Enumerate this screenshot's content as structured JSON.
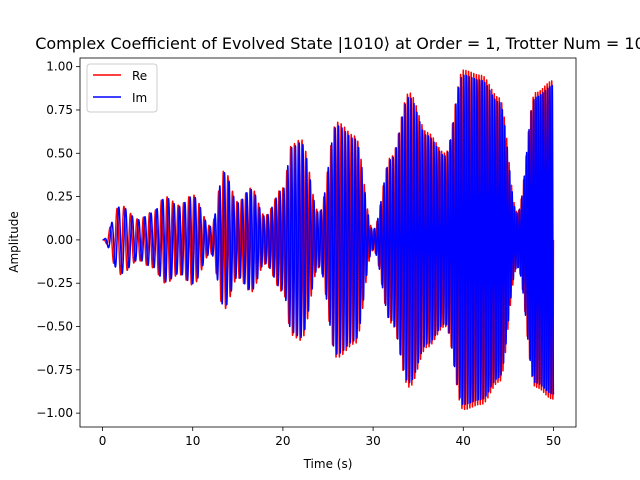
{
  "chart_data": {
    "type": "line",
    "title": "Complex Coefficient of Evolved State |1010⟩ at Order = 1, Trotter Num = 10",
    "xlabel": "Time (s)",
    "ylabel": "Amplitude",
    "xlim": [
      -2.5,
      52.5
    ],
    "ylim": [
      -1.08,
      1.05
    ],
    "xticks": [
      0,
      10,
      20,
      30,
      40,
      50
    ],
    "xtick_labels": [
      "0",
      "10",
      "20",
      "30",
      "40",
      "50"
    ],
    "yticks": [
      -1.0,
      -0.75,
      -0.5,
      -0.25,
      0.0,
      0.25,
      0.5,
      0.75,
      1.0
    ],
    "ytick_labels": [
      "−1.00",
      "−0.75",
      "−0.50",
      "−0.25",
      "0.00",
      "0.25",
      "0.50",
      "0.75",
      "1.00"
    ],
    "grid": false,
    "legend_position": "top-left",
    "envelope": {
      "t": [
        0,
        2,
        4,
        5.5,
        7,
        8.5,
        10,
        12,
        13.5,
        15,
        16.5,
        18,
        20,
        21,
        22,
        24,
        26,
        28,
        30,
        32,
        34,
        36,
        38,
        40,
        42,
        44,
        46,
        48,
        50
      ],
      "amp": [
        0.0,
        0.2,
        0.12,
        0.16,
        0.25,
        0.2,
        0.26,
        0.08,
        0.4,
        0.22,
        0.3,
        0.14,
        0.3,
        0.55,
        0.58,
        0.16,
        0.68,
        0.6,
        0.06,
        0.48,
        0.85,
        0.62,
        0.5,
        0.98,
        0.95,
        0.82,
        0.16,
        0.85,
        0.92
      ]
    },
    "series": [
      {
        "name": "Re",
        "color": "#ff0000",
        "phase_offset": 0.0
      },
      {
        "name": "Im",
        "color": "#0000ff",
        "phase_offset": -1.5708
      }
    ],
    "oscillation": {
      "base_freq": 1.2,
      "chirp": 0.055
    }
  }
}
